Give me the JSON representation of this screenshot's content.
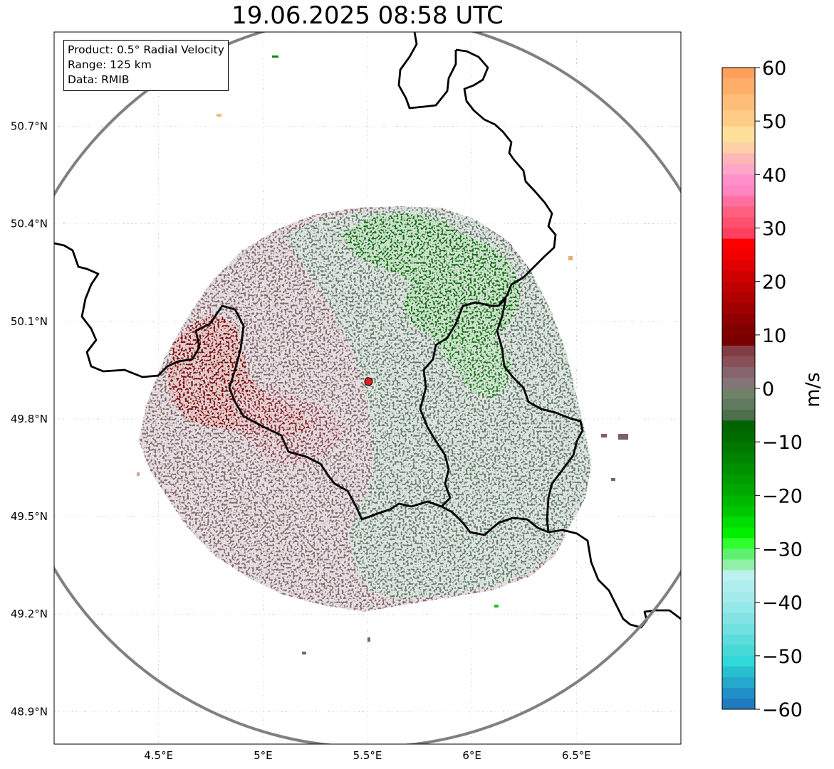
{
  "title": "19.06.2025 08:58 UTC",
  "info_box": {
    "product": "Product: 0.5° Radial Velocity",
    "range": "Range: 125 km",
    "data_source": "Data: RMIB"
  },
  "map": {
    "lon_range": [
      4.0,
      7.0
    ],
    "lat_range": [
      48.8,
      50.99
    ],
    "lon_ticks": [
      {
        "value": 4.5,
        "label": "4.5°E"
      },
      {
        "value": 5.0,
        "label": "5°E"
      },
      {
        "value": 5.5,
        "label": "5.5°E"
      },
      {
        "value": 6.0,
        "label": "6°E"
      },
      {
        "value": 6.5,
        "label": "6.5°E"
      }
    ],
    "lat_ticks": [
      {
        "value": 50.7,
        "label": "50.7°N"
      },
      {
        "value": 50.4,
        "label": "50.4°N"
      },
      {
        "value": 50.1,
        "label": "50.1°N"
      },
      {
        "value": 49.8,
        "label": "49.8°N"
      },
      {
        "value": 49.5,
        "label": "49.5°N"
      },
      {
        "value": 49.2,
        "label": "49.2°N"
      },
      {
        "value": 48.9,
        "label": "48.9°N"
      }
    ],
    "radar_site": {
      "lon": 5.505,
      "lat": 49.915
    },
    "range_km": 125,
    "colors": {
      "range_ring": "#808080",
      "border": "#000000",
      "grid": "#b0b0b0",
      "radar_marker": "#e02020",
      "toward_dark": "#006400",
      "toward_light": "#5f7a5f",
      "away_light": "#80606a",
      "away_dark": "#7a0000"
    }
  },
  "colorbar": {
    "label": "m/s",
    "min": -60,
    "max": 60,
    "ticks": [
      {
        "value": 60,
        "label": "60"
      },
      {
        "value": 50,
        "label": "50"
      },
      {
        "value": 40,
        "label": "40"
      },
      {
        "value": 30,
        "label": "30"
      },
      {
        "value": 20,
        "label": "20"
      },
      {
        "value": 10,
        "label": "10"
      },
      {
        "value": 0,
        "label": "0"
      },
      {
        "value": -10,
        "label": "−10"
      },
      {
        "value": -20,
        "label": "−20"
      },
      {
        "value": -30,
        "label": "−30"
      },
      {
        "value": -40,
        "label": "−40"
      },
      {
        "value": -50,
        "label": "−50"
      },
      {
        "value": -60,
        "label": "−60"
      }
    ],
    "stops": [
      {
        "from": 58,
        "to": 60,
        "color": "#ff9f5a"
      },
      {
        "from": 55,
        "to": 58,
        "color": "#ffae6a"
      },
      {
        "from": 52,
        "to": 55,
        "color": "#ffbd7a"
      },
      {
        "from": 49,
        "to": 52,
        "color": "#ffcc88"
      },
      {
        "from": 46,
        "to": 49,
        "color": "#ffe09a"
      },
      {
        "from": 44,
        "to": 46,
        "color": "#ffd0a8"
      },
      {
        "from": 42,
        "to": 44,
        "color": "#ffb6b6"
      },
      {
        "from": 40,
        "to": 42,
        "color": "#ffa6c8"
      },
      {
        "from": 38,
        "to": 40,
        "color": "#ff90cc"
      },
      {
        "from": 36,
        "to": 38,
        "color": "#ff84c0"
      },
      {
        "from": 34,
        "to": 36,
        "color": "#ff70a0"
      },
      {
        "from": 32,
        "to": 34,
        "color": "#ff6080"
      },
      {
        "from": 30,
        "to": 32,
        "color": "#ff5070"
      },
      {
        "from": 28,
        "to": 30,
        "color": "#ff4060"
      },
      {
        "from": 26,
        "to": 28,
        "color": "#ff0000"
      },
      {
        "from": 24,
        "to": 26,
        "color": "#f00000"
      },
      {
        "from": 22,
        "to": 24,
        "color": "#e00000"
      },
      {
        "from": 20,
        "to": 22,
        "color": "#d00000"
      },
      {
        "from": 18,
        "to": 20,
        "color": "#c00000"
      },
      {
        "from": 16,
        "to": 18,
        "color": "#b00000"
      },
      {
        "from": 14,
        "to": 16,
        "color": "#a00000"
      },
      {
        "from": 12,
        "to": 14,
        "color": "#900000"
      },
      {
        "from": 10,
        "to": 12,
        "color": "#800000"
      },
      {
        "from": 8,
        "to": 10,
        "color": "#7a0000"
      },
      {
        "from": 6,
        "to": 8,
        "color": "#843c44"
      },
      {
        "from": 4,
        "to": 6,
        "color": "#8a5058"
      },
      {
        "from": 2,
        "to": 4,
        "color": "#87646c"
      },
      {
        "from": 0,
        "to": 2,
        "color": "#857578"
      },
      {
        "from": -2,
        "to": 0,
        "color": "#6e8268"
      },
      {
        "from": -4,
        "to": -2,
        "color": "#5f7a5f"
      },
      {
        "from": -6,
        "to": -4,
        "color": "#4e6e4e"
      },
      {
        "from": -8,
        "to": -6,
        "color": "#006400"
      },
      {
        "from": -10,
        "to": -8,
        "color": "#006c00"
      },
      {
        "from": -12,
        "to": -10,
        "color": "#007800"
      },
      {
        "from": -14,
        "to": -12,
        "color": "#008400"
      },
      {
        "from": -16,
        "to": -14,
        "color": "#009000"
      },
      {
        "from": -18,
        "to": -16,
        "color": "#009c00"
      },
      {
        "from": -20,
        "to": -18,
        "color": "#00a800"
      },
      {
        "from": -22,
        "to": -20,
        "color": "#00b800"
      },
      {
        "from": -24,
        "to": -22,
        "color": "#00c800"
      },
      {
        "from": -26,
        "to": -24,
        "color": "#00dc00"
      },
      {
        "from": -28,
        "to": -26,
        "color": "#00f000"
      },
      {
        "from": -30,
        "to": -28,
        "color": "#30ff30"
      },
      {
        "from": -32,
        "to": -30,
        "color": "#60f070"
      },
      {
        "from": -34,
        "to": -32,
        "color": "#90f0a8"
      },
      {
        "from": -36,
        "to": -34,
        "color": "#bff0f0"
      },
      {
        "from": -38,
        "to": -36,
        "color": "#b0eeee"
      },
      {
        "from": -40,
        "to": -38,
        "color": "#a4ecec"
      },
      {
        "from": -42,
        "to": -40,
        "color": "#94e8e8"
      },
      {
        "from": -44,
        "to": -42,
        "color": "#84e4e4"
      },
      {
        "from": -46,
        "to": -44,
        "color": "#70e0e0"
      },
      {
        "from": -48,
        "to": -46,
        "color": "#5cdcdc"
      },
      {
        "from": -50,
        "to": -48,
        "color": "#48d8d8"
      },
      {
        "from": -52,
        "to": -50,
        "color": "#30d8d8"
      },
      {
        "from": -54,
        "to": -52,
        "color": "#28c0d0"
      },
      {
        "from": -56,
        "to": -54,
        "color": "#24a8cc"
      },
      {
        "from": -58,
        "to": -56,
        "color": "#2290c8"
      },
      {
        "from": -60,
        "to": -58,
        "color": "#1f7abf"
      }
    ]
  }
}
